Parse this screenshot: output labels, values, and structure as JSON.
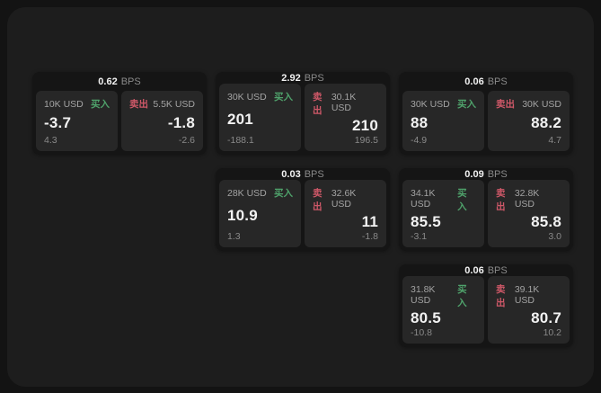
{
  "labels": {
    "bps_suffix": "BPS",
    "buy": "买入",
    "sell": "卖出"
  },
  "colors": {
    "panel": "#1d1d1d",
    "card": "#151515",
    "pane": "#272727",
    "buy": "#4fa26b",
    "sell": "#cf5868",
    "value": "#f2f2f2",
    "muted": "#a3a3a3",
    "dim": "#8a8a8a"
  },
  "cards": [
    {
      "bps": "0.62",
      "buy": {
        "amount": "10K USD",
        "value": "-3.7",
        "sub": "4.3"
      },
      "sell": {
        "amount": "5.5K USD",
        "value": "-1.8",
        "sub": "-2.6"
      }
    },
    {
      "bps": "2.92",
      "buy": {
        "amount": "30K USD",
        "value": "201",
        "sub": "-188.1"
      },
      "sell": {
        "amount": "30.1K USD",
        "value": "210",
        "sub": "196.5"
      }
    },
    {
      "bps": "0.06",
      "buy": {
        "amount": "30K USD",
        "value": "88",
        "sub": "-4.9"
      },
      "sell": {
        "amount": "30K USD",
        "value": "88.2",
        "sub": "4.7"
      }
    },
    {
      "bps": "0.03",
      "buy": {
        "amount": "28K USD",
        "value": "10.9",
        "sub": "1.3"
      },
      "sell": {
        "amount": "32.6K USD",
        "value": "11",
        "sub": "-1.8"
      }
    },
    {
      "bps": "0.09",
      "buy": {
        "amount": "34.1K USD",
        "value": "85.5",
        "sub": "-3.1"
      },
      "sell": {
        "amount": "32.8K USD",
        "value": "85.8",
        "sub": "3.0"
      }
    },
    {
      "bps": "0.06",
      "buy": {
        "amount": "31.8K USD",
        "value": "80.5",
        "sub": "-10.8"
      },
      "sell": {
        "amount": "39.1K USD",
        "value": "80.7",
        "sub": "10.2"
      }
    }
  ]
}
